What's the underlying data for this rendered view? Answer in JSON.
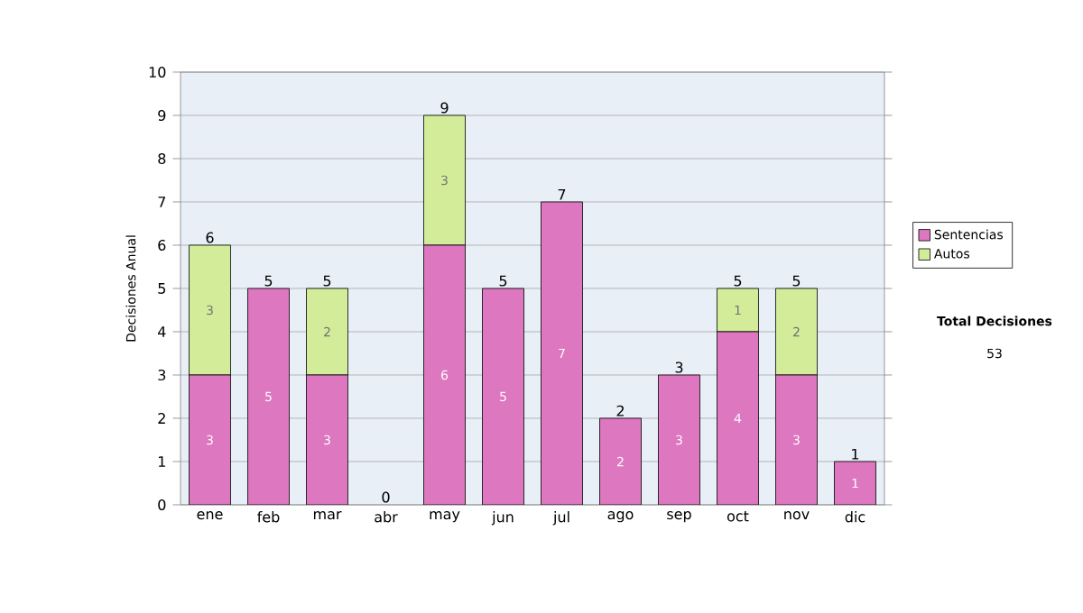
{
  "chart_data": {
    "type": "bar",
    "stacked": true,
    "ylabel": "Decisiones Anual",
    "categories": [
      "ene",
      "feb",
      "mar",
      "abr",
      "may",
      "jun",
      "jul",
      "ago",
      "sep",
      "oct",
      "nov",
      "dic"
    ],
    "series": [
      {
        "name": "Sentencias",
        "color": "#dd77c0",
        "values": [
          3,
          5,
          3,
          0,
          6,
          5,
          7,
          2,
          3,
          4,
          3,
          1
        ],
        "value_labels": [
          "3",
          "5",
          "3",
          null,
          "6",
          "5",
          "7",
          "2",
          "3",
          "4",
          "3",
          "1"
        ]
      },
      {
        "name": "Autos",
        "color": "#d2ec9a",
        "values": [
          3,
          0,
          2,
          0,
          3,
          0,
          0,
          0,
          0,
          1,
          2,
          0
        ],
        "value_labels": [
          "3",
          null,
          "2",
          null,
          "3",
          null,
          null,
          null,
          null,
          "1",
          "2",
          null
        ]
      }
    ],
    "totals": [
      "6",
      "5",
      "5",
      "0",
      "9",
      "5",
      "7",
      "2",
      "3",
      "5",
      "5",
      "1"
    ],
    "ylim": [
      0,
      10
    ],
    "yticks": [
      0,
      1,
      2,
      3,
      4,
      5,
      6,
      7,
      8,
      9,
      10
    ],
    "grid": "y",
    "legend": "right",
    "annotations": [
      "Total Decisiones",
      "53"
    ]
  }
}
